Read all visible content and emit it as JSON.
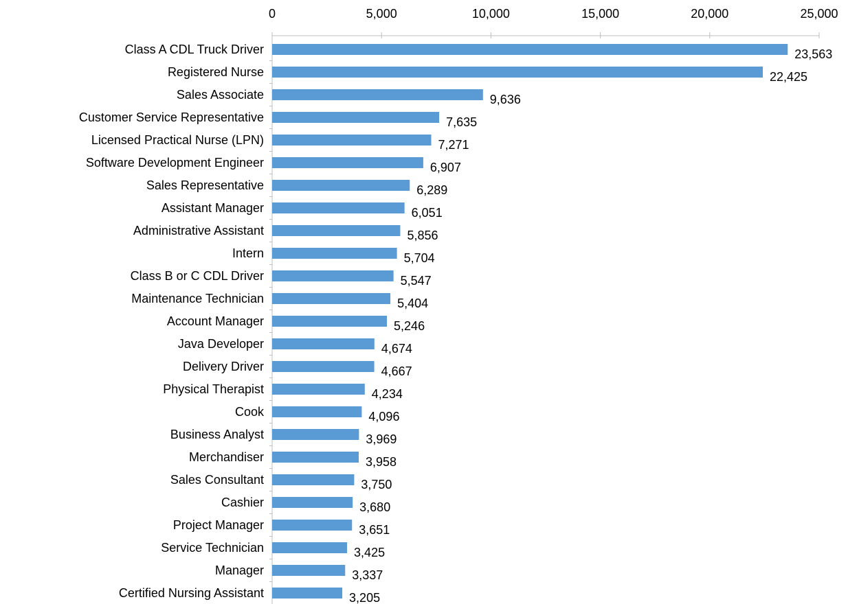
{
  "chart_data": {
    "type": "barh",
    "categories": [
      "Class A CDL Truck Driver",
      "Registered Nurse",
      "Sales Associate",
      "Customer Service Representative",
      "Licensed Practical Nurse (LPN)",
      "Software Development Engineer",
      "Sales Representative",
      "Assistant Manager",
      "Administrative Assistant",
      "Intern",
      "Class B or C CDL Driver",
      "Maintenance Technician",
      "Account Manager",
      "Java Developer",
      "Delivery Driver",
      "Physical Therapist",
      "Cook",
      "Business Analyst",
      "Merchandiser",
      "Sales Consultant",
      "Cashier",
      "Project Manager",
      "Service Technician",
      "Manager",
      "Certified Nursing Assistant"
    ],
    "values": [
      23563,
      22425,
      9636,
      7635,
      7271,
      6907,
      6289,
      6051,
      5856,
      5704,
      5547,
      5404,
      5246,
      4674,
      4667,
      4234,
      4096,
      3969,
      3958,
      3750,
      3680,
      3651,
      3425,
      3337,
      3205
    ],
    "value_labels": [
      "23,563",
      "22,425",
      "9,636",
      "7,635",
      "7,271",
      "6,907",
      "6,289",
      "6,051",
      "5,856",
      "5,704",
      "5,547",
      "5,404",
      "5,246",
      "4,674",
      "4,667",
      "4,234",
      "4,096",
      "3,969",
      "3,958",
      "3,750",
      "3,680",
      "3,651",
      "3,425",
      "3,337",
      "3,205"
    ],
    "color": "#5b9bd5",
    "xlim": [
      0,
      25000
    ],
    "xticks": [
      0,
      {
        "value": 5000,
        "label": "5,000"
      },
      {
        "value": 10000,
        "label": "10,000"
      },
      {
        "value": 15000,
        "label": "15,000"
      },
      {
        "value": 20000,
        "label": "20,000"
      },
      {
        "value": 25000,
        "label": "25,000"
      }
    ],
    "grid": false
  }
}
